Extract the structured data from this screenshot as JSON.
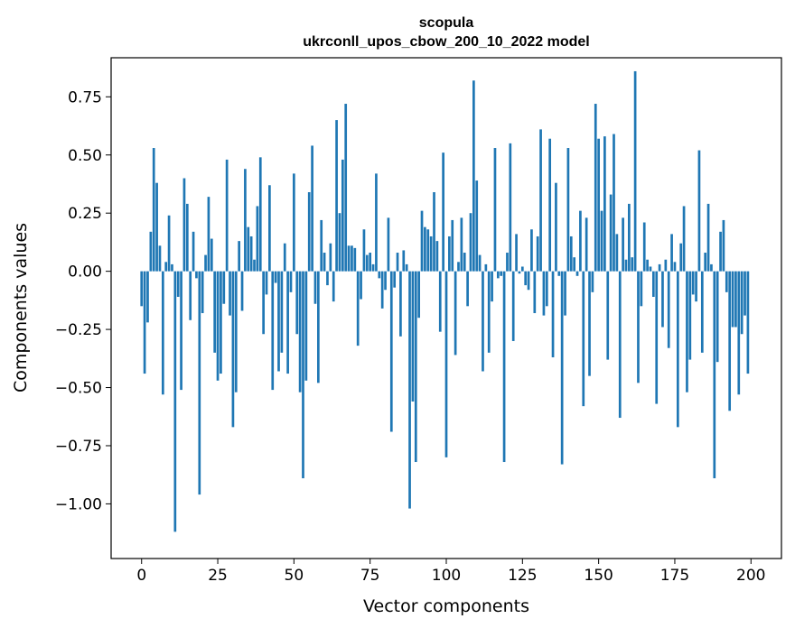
{
  "chart_data": {
    "type": "bar",
    "title_lines": [
      "scopula",
      "ukrconll_upos_cbow_200_10_2022 model"
    ],
    "xlabel": "Vector components",
    "ylabel": "Components values",
    "xlim": [
      -10,
      210
    ],
    "ylim": [
      -1.235,
      0.918
    ],
    "xticks": [
      0,
      25,
      50,
      75,
      100,
      125,
      150,
      175,
      200
    ],
    "yticks": [
      -1.0,
      -0.75,
      -0.5,
      -0.25,
      0.0,
      0.25,
      0.5,
      0.75
    ],
    "ytick_labels": [
      "−1.00",
      "−0.75",
      "−0.50",
      "−0.25",
      "0.00",
      "0.25",
      "0.50",
      "0.75"
    ],
    "bar_color": "#1f77b4",
    "grid": false,
    "legend": "none",
    "values": [
      -0.15,
      -0.44,
      -0.22,
      0.17,
      0.53,
      0.38,
      0.11,
      -0.53,
      0.04,
      0.24,
      0.03,
      -1.12,
      -0.11,
      -0.51,
      0.4,
      0.29,
      -0.21,
      0.17,
      -0.03,
      -0.96,
      -0.18,
      0.07,
      0.32,
      0.14,
      -0.35,
      -0.47,
      -0.44,
      -0.14,
      0.48,
      -0.19,
      -0.67,
      -0.52,
      0.13,
      -0.17,
      0.44,
      0.19,
      0.15,
      0.05,
      0.28,
      0.49,
      -0.27,
      -0.1,
      0.37,
      -0.51,
      -0.05,
      -0.43,
      -0.35,
      0.12,
      -0.44,
      -0.09,
      0.42,
      -0.27,
      -0.52,
      -0.89,
      -0.47,
      0.34,
      0.54,
      -0.14,
      -0.48,
      0.22,
      0.08,
      -0.06,
      0.12,
      -0.13,
      0.65,
      0.25,
      0.48,
      0.72,
      0.11,
      0.11,
      0.1,
      -0.32,
      -0.12,
      0.18,
      0.07,
      0.08,
      0.03,
      0.42,
      -0.03,
      -0.16,
      -0.08,
      0.23,
      -0.69,
      -0.07,
      0.08,
      -0.28,
      0.09,
      0.03,
      -1.02,
      -0.56,
      -0.82,
      -0.2,
      0.26,
      0.19,
      0.18,
      0.15,
      0.34,
      0.13,
      -0.26,
      0.51,
      -0.8,
      0.15,
      0.22,
      -0.36,
      0.04,
      0.23,
      0.08,
      -0.15,
      0.25,
      0.82,
      0.39,
      0.07,
      -0.43,
      0.03,
      -0.35,
      -0.13,
      0.53,
      -0.03,
      -0.02,
      -0.82,
      0.08,
      0.55,
      -0.3,
      0.16,
      -0.01,
      0.02,
      -0.06,
      -0.08,
      0.18,
      -0.18,
      0.15,
      0.61,
      -0.19,
      -0.15,
      0.57,
      -0.37,
      0.38,
      -0.02,
      -0.83,
      -0.19,
      0.53,
      0.15,
      0.06,
      -0.02,
      0.26,
      -0.58,
      0.23,
      -0.45,
      -0.09,
      0.72,
      0.57,
      0.26,
      0.58,
      -0.38,
      0.33,
      0.59,
      0.16,
      -0.63,
      0.23,
      0.05,
      0.29,
      0.06,
      0.86,
      -0.48,
      -0.15,
      0.21,
      0.05,
      0.02,
      -0.11,
      -0.57,
      0.03,
      -0.24,
      0.05,
      -0.33,
      0.16,
      0.04,
      -0.67,
      0.12,
      0.28,
      -0.52,
      -0.38,
      -0.1,
      -0.13,
      0.52,
      -0.35,
      0.08,
      0.29,
      0.03,
      -0.89,
      -0.39,
      0.17,
      0.22,
      -0.09,
      -0.6,
      -0.24,
      -0.24,
      -0.53,
      -0.27,
      -0.19,
      -0.44
    ]
  }
}
